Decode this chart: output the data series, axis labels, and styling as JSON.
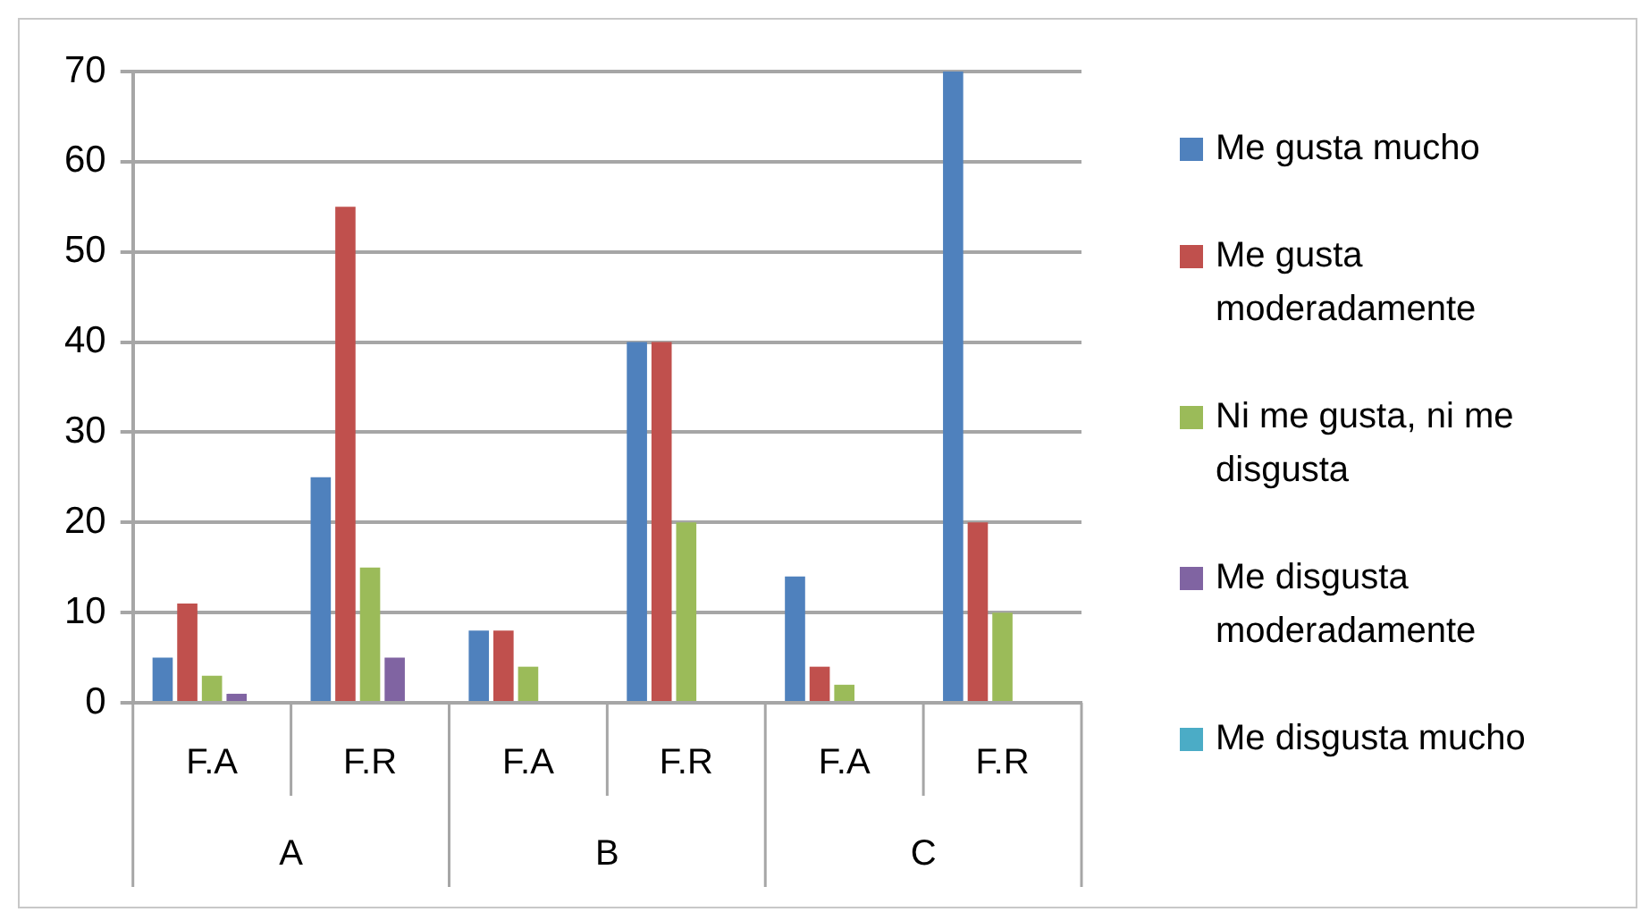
{
  "chart_data": {
    "type": "bar",
    "categories": [
      "F.A",
      "F.R",
      "F.A",
      "F.R",
      "F.A",
      "F.R"
    ],
    "annotations": [
      "A",
      "B",
      "C"
    ],
    "series": [
      {
        "name": "Me gusta mucho",
        "color": "#4f81bd",
        "values": [
          5,
          25,
          8,
          40,
          14,
          70
        ]
      },
      {
        "name": "Me gusta moderadamente",
        "color": "#c0504d",
        "values": [
          11,
          55,
          8,
          40,
          4,
          20
        ]
      },
      {
        "name": "Ni me gusta, ni me disgusta",
        "color": "#9bbb59",
        "values": [
          3,
          15,
          4,
          20,
          2,
          10
        ]
      },
      {
        "name": "Me disgusta moderadamente",
        "color": "#8064a2",
        "values": [
          1,
          5,
          0,
          0,
          0,
          0
        ]
      },
      {
        "name": "Me disgusta mucho",
        "color": "#4bacc6",
        "values": [
          0,
          0,
          0,
          0,
          0,
          0
        ]
      }
    ],
    "ylim": [
      0,
      70
    ],
    "yticks": [
      0,
      10,
      20,
      30,
      40,
      50,
      60,
      70
    ],
    "grid": "y",
    "legend": "right"
  }
}
